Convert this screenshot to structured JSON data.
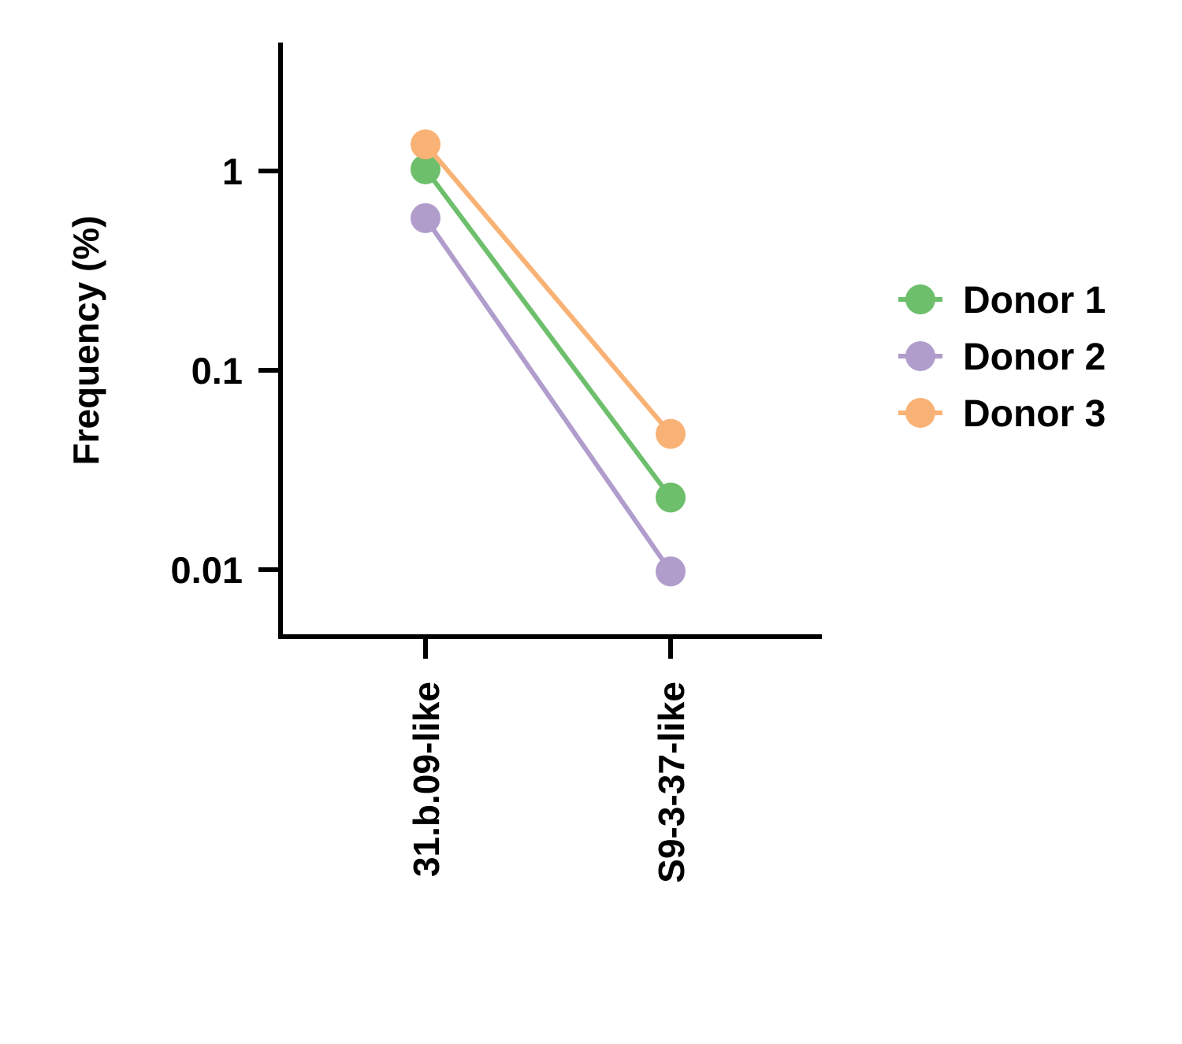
{
  "chart_data": {
    "type": "line",
    "title": "",
    "xlabel": "",
    "ylabel": "Frequency (%)",
    "yscale": "log",
    "ylim": [
      0.0045,
      4.5
    ],
    "categories": [
      "31.b.09-like",
      "S9-3-37-like"
    ],
    "yticks": [
      0.01,
      0.1,
      1
    ],
    "ytick_labels": [
      "0.01",
      "0.1",
      "1"
    ],
    "grid": false,
    "legend_position": "right",
    "series": [
      {
        "name": "Donor 1",
        "color": "#6dbf6b",
        "values": [
          1.02,
          0.023
        ]
      },
      {
        "name": "Donor 2",
        "color": "#b09dcc",
        "values": [
          0.58,
          0.0098
        ]
      },
      {
        "name": "Donor 3",
        "color": "#f9b275",
        "values": [
          1.36,
          0.048
        ]
      }
    ]
  }
}
